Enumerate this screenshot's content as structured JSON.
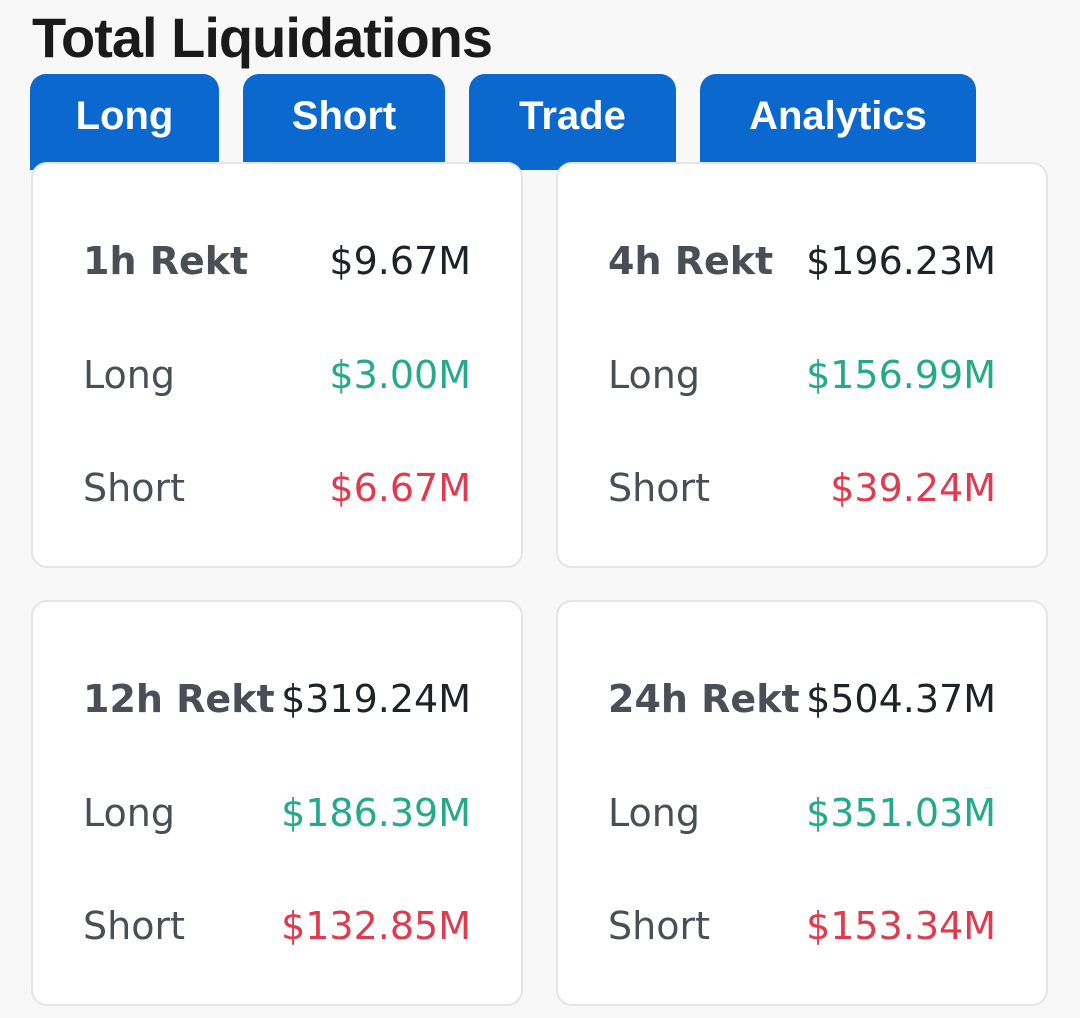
{
  "page": {
    "title": "Total Liquidations"
  },
  "tabs": [
    {
      "label": "Long"
    },
    {
      "label": "Short"
    },
    {
      "label": "Trade"
    },
    {
      "label": "Analytics"
    }
  ],
  "cards": [
    {
      "rekt_label": "1h Rekt",
      "rekt_value": "$9.67M",
      "long_label": "Long",
      "long_value": "$3.00M",
      "short_label": "Short",
      "short_value": "$6.67M"
    },
    {
      "rekt_label": "4h Rekt",
      "rekt_value": "$196.23M",
      "long_label": "Long",
      "long_value": "$156.99M",
      "short_label": "Short",
      "short_value": "$39.24M"
    },
    {
      "rekt_label": "12h Rekt",
      "rekt_value": "$319.24M",
      "long_label": "Long",
      "long_value": "$186.39M",
      "short_label": "Short",
      "short_value": "$132.85M"
    },
    {
      "rekt_label": "24h Rekt",
      "rekt_value": "$504.37M",
      "long_label": "Long",
      "long_value": "$351.03M",
      "short_label": "Short",
      "short_value": "$153.34M"
    }
  ],
  "colors": {
    "tab_background": "#0b68cf",
    "long_value": "#26a98b",
    "short_value": "#e03a4e"
  }
}
